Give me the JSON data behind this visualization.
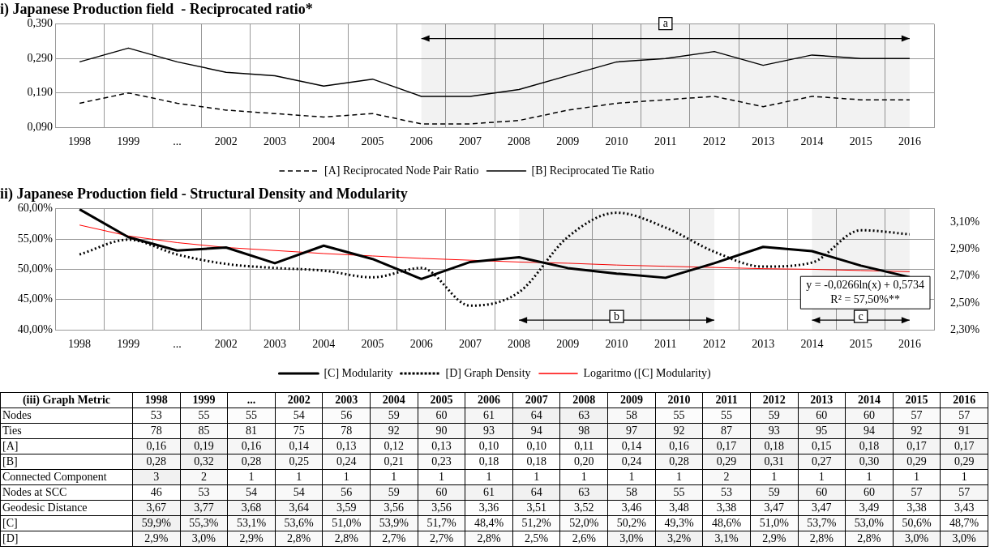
{
  "chart_data": [
    {
      "type": "line",
      "title": "i) Japanese Production field  - Reciprocated ratio*",
      "categories": [
        "1998",
        "1999",
        "...",
        "2002",
        "2003",
        "2004",
        "2005",
        "2006",
        "2007",
        "2008",
        "2009",
        "2010",
        "2011",
        "2012",
        "2013",
        "2014",
        "2015",
        "2016"
      ],
      "series": [
        {
          "name": "[A] Reciprocated Node Pair Ratio",
          "color": "#000000",
          "line_style": "dashed",
          "values": [
            0.16,
            0.19,
            0.16,
            0.14,
            0.13,
            0.12,
            0.13,
            0.1,
            0.1,
            0.11,
            0.14,
            0.16,
            0.17,
            0.18,
            0.15,
            0.18,
            0.17,
            0.17
          ]
        },
        {
          "name": "[B] Reciprocated Tie Ratio",
          "color": "#000000",
          "line_style": "solid",
          "values": [
            0.28,
            0.32,
            0.28,
            0.25,
            0.24,
            0.21,
            0.23,
            0.18,
            0.18,
            0.2,
            0.24,
            0.28,
            0.29,
            0.31,
            0.27,
            0.3,
            0.29,
            0.29
          ]
        }
      ],
      "ylim": [
        0.09,
        0.39
      ],
      "yticks": [
        {
          "value": 0.09,
          "label": "0,090"
        },
        {
          "value": 0.19,
          "label": "0,190"
        },
        {
          "value": 0.29,
          "label": "0,290"
        },
        {
          "value": 0.39,
          "label": "0,390"
        }
      ],
      "bands": [
        {
          "axis": "x",
          "from": "2006",
          "to": "2016",
          "label": "a"
        }
      ],
      "grid": true,
      "legend": "bottom",
      "marker": "none"
    },
    {
      "type": "line",
      "title": "ii) Japanese Production field - Structural Density and Modularity",
      "categories": [
        "1998",
        "1999",
        "...",
        "2002",
        "2003",
        "2004",
        "2005",
        "2006",
        "2007",
        "2008",
        "2009",
        "2010",
        "2011",
        "2012",
        "2013",
        "2014",
        "2015",
        "2016"
      ],
      "series": [
        {
          "name": "[C] Modularity",
          "color": "#000000",
          "line_style": "solid",
          "values": [
            59.9,
            55.3,
            53.1,
            53.6,
            51.0,
            53.9,
            51.7,
            48.4,
            51.2,
            52.0,
            50.2,
            49.3,
            48.6,
            51.0,
            53.7,
            53.0,
            50.6,
            48.7
          ]
        },
        {
          "name": "[D] Graph Density",
          "color": "#000000",
          "line_style": "dotted",
          "axis": "y2",
          "values": [
            2.86,
            2.97,
            2.86,
            2.79,
            2.76,
            2.74,
            2.69,
            2.76,
            2.48,
            2.58,
            2.99,
            3.17,
            3.06,
            2.88,
            2.77,
            2.8,
            3.04,
            3.01
          ]
        },
        {
          "name": "Logaritmo ([C] Modularity)",
          "type": "line",
          "color": "#ff0000",
          "line_style": "solid",
          "values": [
            57.3,
            55.5,
            54.4,
            53.6,
            53.1,
            52.6,
            52.2,
            51.8,
            51.5,
            51.2,
            51.0,
            50.7,
            50.5,
            50.3,
            50.1,
            50.0,
            49.8,
            49.6
          ]
        }
      ],
      "ylim": [
        40,
        60
      ],
      "yticks": [
        {
          "value": 40,
          "label": "40,00%"
        },
        {
          "value": 45,
          "label": "45,00%"
        },
        {
          "value": 50,
          "label": "50,00%"
        },
        {
          "value": 55,
          "label": "55,00%"
        },
        {
          "value": 60,
          "label": "60,00%"
        }
      ],
      "y2lim": [
        2.3,
        3.2
      ],
      "y2ticks": [
        {
          "value": 2.3,
          "label": "2,30%"
        },
        {
          "value": 2.5,
          "label": "2,50%"
        },
        {
          "value": 2.7,
          "label": "2,70%"
        },
        {
          "value": 2.9,
          "label": "2,90%"
        },
        {
          "value": 3.1,
          "label": "3,10%"
        }
      ],
      "bands": [
        {
          "axis": "x",
          "from": "2008",
          "to": "2012",
          "label": "b"
        },
        {
          "axis": "x",
          "from": "2014",
          "to": "2016",
          "label": "c"
        }
      ],
      "annotations": [
        "y = -0,0266ln(x) + 0,5734\nR² = 57,50%**"
      ],
      "grid": true,
      "legend": "bottom",
      "marker": "none"
    },
    {
      "type": "heatmap",
      "title": "(iii) Graph Metric",
      "categories": [
        "1998",
        "1999",
        "...",
        "2002",
        "2003",
        "2004",
        "2005",
        "2006",
        "2007",
        "2008",
        "2009",
        "2010",
        "2011",
        "2012",
        "2013",
        "2014",
        "2015",
        "2016"
      ],
      "y_categories": [
        "Nodes",
        "Ties",
        "[A]",
        "[B]",
        "Connected Component",
        "Nodes at SCC",
        "Geodesic Distance",
        "[C]",
        "[D]"
      ],
      "cells": [
        [
          53,
          55,
          55,
          54,
          56,
          59,
          60,
          61,
          64,
          63,
          58,
          55,
          55,
          59,
          60,
          60,
          57,
          57
        ],
        [
          78,
          85,
          81,
          75,
          78,
          92,
          90,
          93,
          94,
          98,
          97,
          92,
          87,
          93,
          95,
          94,
          92,
          91
        ],
        [
          0.16,
          0.19,
          0.16,
          0.14,
          0.13,
          0.12,
          0.13,
          0.1,
          0.1,
          0.11,
          0.14,
          0.16,
          0.17,
          0.18,
          0.15,
          0.18,
          0.17,
          0.17
        ],
        [
          0.28,
          0.32,
          0.28,
          0.25,
          0.24,
          0.21,
          0.23,
          0.18,
          0.18,
          0.2,
          0.24,
          0.28,
          0.29,
          0.31,
          0.27,
          0.3,
          0.29,
          0.29
        ],
        [
          3,
          2,
          1,
          1,
          1,
          1,
          1,
          1,
          1,
          1,
          1,
          1,
          2,
          1,
          1,
          1,
          1,
          1
        ],
        [
          46,
          53,
          54,
          54,
          56,
          59,
          60,
          61,
          64,
          63,
          58,
          55,
          53,
          59,
          60,
          60,
          57,
          57
        ],
        [
          3.67,
          3.77,
          3.68,
          3.64,
          3.59,
          3.56,
          3.56,
          3.36,
          3.51,
          3.52,
          3.46,
          3.48,
          3.38,
          3.47,
          3.47,
          3.49,
          3.38,
          3.43
        ],
        [
          59.9,
          55.3,
          53.1,
          53.6,
          51.0,
          53.9,
          51.7,
          48.4,
          51.2,
          52.0,
          50.2,
          49.3,
          48.6,
          51.0,
          53.7,
          53.0,
          50.6,
          48.7
        ],
        [
          2.9,
          3.0,
          2.9,
          2.8,
          2.8,
          2.7,
          2.7,
          2.8,
          2.5,
          2.6,
          3.0,
          3.2,
          3.1,
          2.9,
          2.8,
          2.8,
          3.0,
          3.0
        ]
      ],
      "cell_labels": [
        [
          "53",
          "55",
          "55",
          "54",
          "56",
          "59",
          "60",
          "61",
          "64",
          "63",
          "58",
          "55",
          "55",
          "59",
          "60",
          "60",
          "57",
          "57"
        ],
        [
          "78",
          "85",
          "81",
          "75",
          "78",
          "92",
          "90",
          "93",
          "94",
          "98",
          "97",
          "92",
          "87",
          "93",
          "95",
          "94",
          "92",
          "91"
        ],
        [
          "0,16",
          "0,19",
          "0,16",
          "0,14",
          "0,13",
          "0,12",
          "0,13",
          "0,10",
          "0,10",
          "0,11",
          "0,14",
          "0,16",
          "0,17",
          "0,18",
          "0,15",
          "0,18",
          "0,17",
          "0,17"
        ],
        [
          "0,28",
          "0,32",
          "0,28",
          "0,25",
          "0,24",
          "0,21",
          "0,23",
          "0,18",
          "0,18",
          "0,20",
          "0,24",
          "0,28",
          "0,29",
          "0,31",
          "0,27",
          "0,30",
          "0,29",
          "0,29"
        ],
        [
          "3",
          "2",
          "1",
          "1",
          "1",
          "1",
          "1",
          "1",
          "1",
          "1",
          "1",
          "1",
          "2",
          "1",
          "1",
          "1",
          "1",
          "1"
        ],
        [
          "46",
          "53",
          "54",
          "54",
          "56",
          "59",
          "60",
          "61",
          "64",
          "63",
          "58",
          "55",
          "53",
          "59",
          "60",
          "60",
          "57",
          "57"
        ],
        [
          "3,67",
          "3,77",
          "3,68",
          "3,64",
          "3,59",
          "3,56",
          "3,56",
          "3,36",
          "3,51",
          "3,52",
          "3,46",
          "3,48",
          "3,38",
          "3,47",
          "3,47",
          "3,49",
          "3,38",
          "3,43"
        ],
        [
          "59,9%",
          "55,3%",
          "53,1%",
          "53,6%",
          "51,0%",
          "53,9%",
          "51,7%",
          "48,4%",
          "51,2%",
          "52,0%",
          "50,2%",
          "49,3%",
          "48,6%",
          "51,0%",
          "53,7%",
          "53,0%",
          "50,6%",
          "48,7%"
        ],
        [
          "2,9%",
          "3,0%",
          "2,9%",
          "2,8%",
          "2,8%",
          "2,7%",
          "2,7%",
          "2,8%",
          "2,5%",
          "2,6%",
          "3,0%",
          "3,2%",
          "3,1%",
          "2,9%",
          "2,8%",
          "2,8%",
          "3,0%",
          "3,0%"
        ]
      ]
    }
  ]
}
